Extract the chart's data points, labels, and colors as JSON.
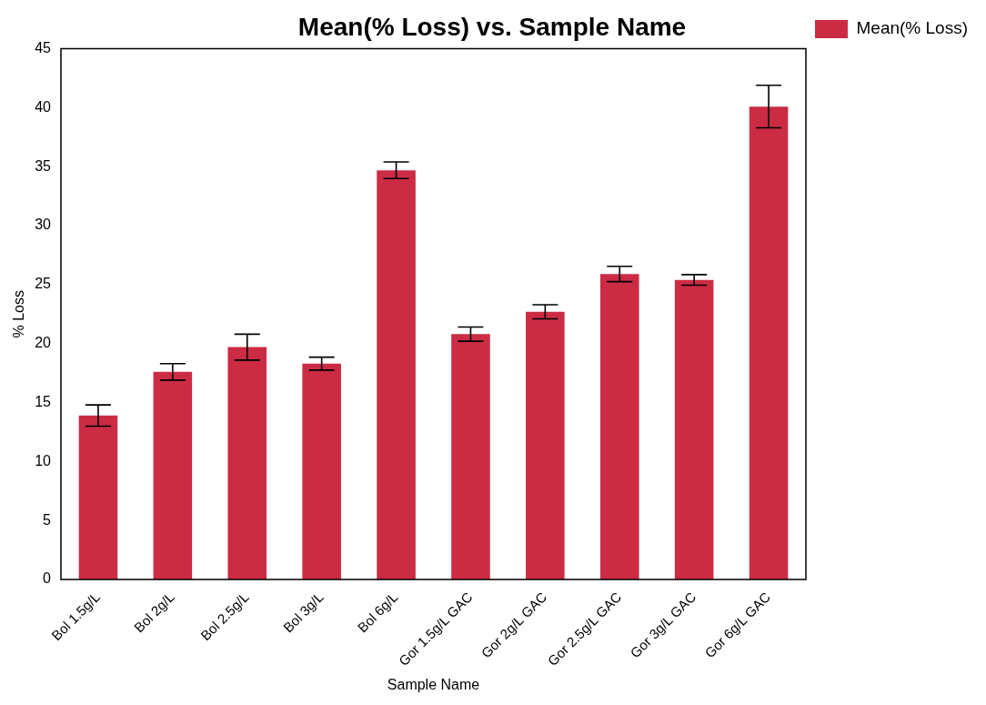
{
  "chart_data": {
    "type": "bar",
    "title": "Mean(% Loss) vs. Sample Name",
    "xlabel": "Sample Name",
    "ylabel": "% Loss",
    "categories": [
      "Bol 1.5g/L",
      "Bol 2g/L",
      "Bol 2.5g/L",
      "Bol 3g/L",
      "Bol 6g/L",
      "Gor 1.5g/L GAC",
      "Gor 2g/L GAC",
      "Gor 2.5g/L GAC",
      "Gor 3g/L GAC",
      "Gor 6g/L GAC"
    ],
    "series": [
      {
        "name": "Mean(% Loss)",
        "color": "#cc2b44",
        "values": [
          13.9,
          17.6,
          19.7,
          18.3,
          34.7,
          20.8,
          22.7,
          25.9,
          25.4,
          40.1
        ],
        "errors": [
          0.9,
          0.7,
          1.1,
          0.55,
          0.7,
          0.6,
          0.6,
          0.65,
          0.45,
          1.8
        ]
      }
    ],
    "ylim": [
      0,
      45
    ],
    "yticks": [
      0,
      5,
      10,
      15,
      20,
      25,
      30,
      35,
      40,
      45
    ],
    "grid": false,
    "legend": "top right"
  }
}
